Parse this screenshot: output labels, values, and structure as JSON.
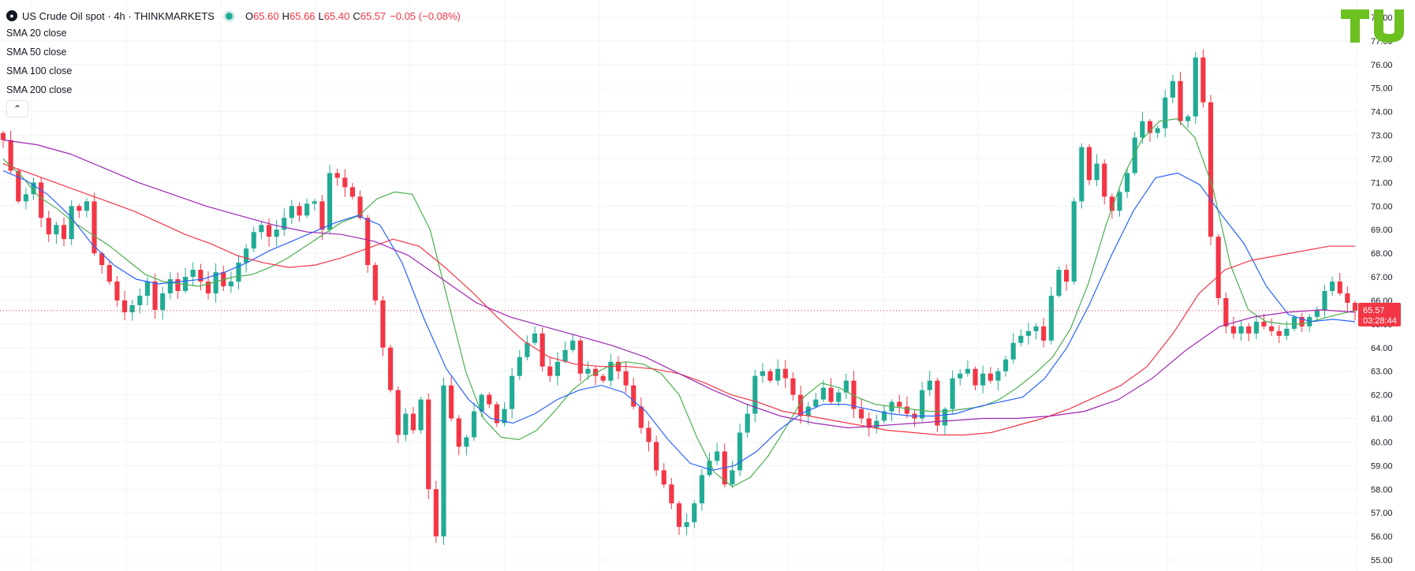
{
  "legend": {
    "symbol": "US Crude Oil spot · 4h · THINKMARKETS",
    "ohlc": [
      {
        "label": "O",
        "value": "65.60"
      },
      {
        "label": "H",
        "value": "65.66"
      },
      {
        "label": "L",
        "value": "65.40"
      },
      {
        "label": "C",
        "value": "65.57"
      },
      {
        "label": "",
        "value": "−0.05 (−0.08%)"
      }
    ],
    "indicators": [
      "SMA 20 close",
      "SMA 50 close",
      "SMA 100 close",
      "SMA 200 close"
    ]
  },
  "price_badge": {
    "price": "65.57",
    "countdown": "03:28:44"
  },
  "colors": {
    "up": "#22ab94",
    "down": "#f23645",
    "sma20": "#4caf50",
    "sma50": "#2962ff",
    "sma100": "#f23645",
    "sma200": "#9c27b0",
    "grid": "#f0f3fa",
    "axis_text": "#131722"
  },
  "chart_data": {
    "type": "candlestick",
    "y_axis": {
      "min": 55,
      "max": 78,
      "ticks": [
        "55.00",
        "56.00",
        "57.00",
        "58.00",
        "59.00",
        "60.00",
        "61.00",
        "62.00",
        "63.00",
        "64.00",
        "65.00",
        "66.00",
        "67.00",
        "68.00",
        "69.00",
        "70.00",
        "71.00",
        "72.00",
        "73.00",
        "74.00",
        "75.00",
        "76.00",
        "77.00",
        "78.00"
      ],
      "position": "right"
    },
    "current_price": 65.57,
    "grid": true,
    "close_path": [
      72.8,
      71.5,
      70.2,
      70.5,
      71.0,
      69.5,
      68.8,
      69.2,
      68.6,
      70.0,
      69.8,
      70.2,
      68.0,
      67.5,
      66.8,
      66.0,
      65.5,
      65.8,
      66.2,
      66.8,
      65.6,
      66.3,
      66.9,
      66.4,
      67.0,
      67.3,
      66.8,
      66.3,
      67.2,
      66.6,
      66.8,
      67.6,
      68.2,
      68.9,
      69.2,
      68.7,
      69.0,
      69.5,
      70.0,
      69.6,
      70.1,
      70.2,
      69.0,
      71.4,
      71.2,
      70.8,
      70.4,
      69.5,
      67.5,
      66.0,
      64.0,
      62.2,
      60.3,
      61.2,
      60.5,
      61.8,
      58.0,
      56.0,
      62.4,
      61.0,
      59.8,
      60.2,
      61.3,
      62.0,
      61.6,
      60.8,
      61.4,
      62.8,
      63.6,
      64.2,
      64.6,
      63.2,
      62.8,
      63.4,
      63.9,
      64.3,
      62.9,
      63.1,
      62.8,
      62.6,
      63.4,
      63.0,
      62.4,
      61.5,
      60.6,
      60.0,
      58.8,
      58.2,
      57.4,
      56.4,
      56.6,
      57.4,
      58.6,
      59.2,
      59.6,
      58.2,
      58.8,
      60.4,
      61.2,
      62.8,
      63.0,
      62.6,
      63.1,
      62.7,
      62.0,
      61.1,
      61.5,
      61.8,
      62.3,
      61.7,
      62.1,
      62.6,
      61.4,
      61.0,
      60.6,
      60.9,
      61.3,
      61.7,
      61.5,
      61.2,
      61.0,
      62.2,
      62.6,
      60.7,
      61.4,
      62.7,
      62.9,
      63.1,
      62.4,
      62.9,
      62.6,
      63.0,
      63.5,
      64.2,
      64.5,
      64.7,
      64.9,
      64.3,
      66.2,
      67.3,
      66.8,
      70.2,
      72.5,
      71.1,
      71.8,
      70.4,
      69.8,
      70.6,
      71.4,
      72.9,
      73.6,
      73.1,
      73.3,
      74.6,
      75.3,
      73.6,
      73.8,
      76.3,
      74.4,
      68.7,
      66.1,
      64.9,
      64.6,
      64.9,
      64.6,
      65.1,
      64.9,
      64.7,
      64.5,
      64.8,
      65.3,
      64.9,
      65.3,
      65.6,
      66.4,
      66.8,
      66.3,
      65.9,
      65.57
    ],
    "sma": [
      {
        "name": "SMA 20 close",
        "values": [
          72.0,
          71.3,
          70.4,
          69.9,
          69.3,
          68.8,
          68.3,
          67.7,
          67.1,
          66.8,
          66.7,
          66.6,
          66.8,
          67.0,
          67.1,
          67.4,
          67.8,
          68.3,
          68.8,
          69.3,
          69.6,
          70.3,
          70.6,
          70.5,
          69.0,
          66.0,
          63.0,
          61.0,
          60.2,
          60.1,
          60.5,
          61.3,
          62.2,
          62.8,
          63.2,
          63.4,
          63.3,
          62.9,
          62.0,
          60.2,
          58.7,
          58.1,
          58.5,
          59.4,
          60.6,
          61.9,
          62.5,
          62.3,
          61.9,
          61.6,
          61.5,
          61.4,
          61.3,
          61.3,
          61.4,
          61.5,
          61.8,
          62.3,
          62.9,
          63.6,
          64.8,
          66.7,
          69.2,
          71.3,
          72.8,
          73.6,
          73.7,
          72.9,
          70.8,
          67.5,
          65.6,
          65.1,
          65.0,
          65.0,
          65.2,
          65.4,
          65.57
        ]
      },
      {
        "name": "SMA 50 close",
        "values": [
          71.5,
          71.1,
          70.5,
          69.6,
          68.4,
          67.5,
          66.9,
          66.7,
          66.8,
          66.9,
          67.2,
          67.6,
          68.1,
          68.5,
          68.9,
          69.3,
          69.6,
          69.2,
          67.6,
          65.2,
          63.1,
          61.8,
          61.0,
          60.8,
          61.2,
          61.8,
          62.2,
          62.4,
          62.1,
          61.3,
          60.1,
          59.1,
          58.8,
          59.0,
          59.6,
          60.5,
          61.2,
          61.6,
          61.6,
          61.4,
          61.2,
          61.1,
          61.1,
          61.2,
          61.5,
          61.7,
          61.9,
          62.7,
          64.0,
          65.8,
          67.9,
          69.8,
          71.2,
          71.4,
          70.9,
          69.6,
          68.4,
          66.6,
          65.4,
          65.1,
          65.2,
          65.1
        ]
      },
      {
        "name": "SMA 100 close",
        "values": [
          71.8,
          71.4,
          71.0,
          70.6,
          70.2,
          69.8,
          69.3,
          68.8,
          68.4,
          67.9,
          67.6,
          67.4,
          67.5,
          67.8,
          68.2,
          68.6,
          68.3,
          67.4,
          66.4,
          65.3,
          64.3,
          63.6,
          63.3,
          63.2,
          63.2,
          63.1,
          62.9,
          62.5,
          62.0,
          61.7,
          61.3,
          61.1,
          60.9,
          60.7,
          60.5,
          60.4,
          60.3,
          60.3,
          60.4,
          60.7,
          61.0,
          61.4,
          61.9,
          62.4,
          63.2,
          64.6,
          66.3,
          67.3,
          67.7,
          67.9,
          68.1,
          68.3,
          68.3
        ]
      },
      {
        "name": "SMA 200 close",
        "values": [
          72.8,
          72.6,
          72.2,
          71.6,
          71.0,
          70.5,
          70.0,
          69.6,
          69.2,
          68.9,
          68.8,
          68.5,
          67.9,
          66.9,
          65.9,
          65.3,
          64.9,
          64.5,
          64.1,
          63.6,
          62.9,
          62.2,
          61.6,
          61.1,
          60.8,
          60.6,
          60.7,
          60.8,
          60.9,
          61.0,
          61.0,
          61.1,
          61.3,
          61.8,
          62.7,
          63.9,
          64.9,
          65.3,
          65.5,
          65.6,
          65.5
        ]
      }
    ]
  }
}
